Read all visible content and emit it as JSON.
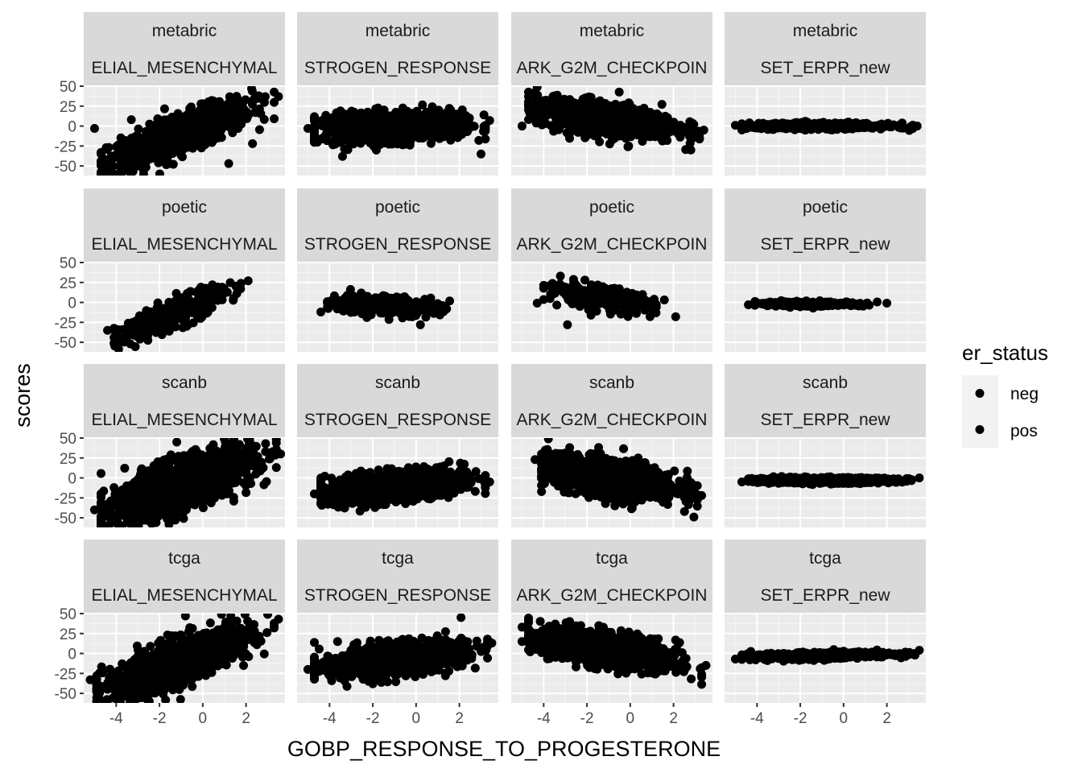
{
  "chart_data": {
    "type": "scatter",
    "xlabel": "GOBP_RESPONSE_TO_PROGESTERONE",
    "ylabel": "scores",
    "xlim": [
      -5.5,
      3.8
    ],
    "ylim": [
      -62,
      50
    ],
    "x_ticks": [
      -4,
      -2,
      0,
      2
    ],
    "x_tick_labels": [
      "-4",
      "-2",
      "0",
      "2"
    ],
    "y_ticks": [
      50,
      25,
      0,
      -25,
      -50
    ],
    "y_tick_labels": [
      "50",
      "25",
      "0",
      "-25",
      "-50"
    ],
    "rows": [
      "metabric",
      "poetic",
      "scanb",
      "tcga"
    ],
    "columns": [
      "ELIAL_MESENCHYMAL",
      "STROGEN_RESPONSE",
      "ARK_G2M_CHECKPOIN",
      "SET_ERPR_new"
    ],
    "legend": {
      "title": "er_status",
      "entries": [
        "neg",
        "pos"
      ],
      "position": "right"
    },
    "grid": true,
    "panels": [
      {
        "row": "metabric",
        "column": "ELIAL_MESENCHYMAL",
        "x_range": [
          -5.0,
          3.5
        ],
        "slope": 10,
        "intercept": 0,
        "y_spread": 12,
        "n_points": 900,
        "outliers": [
          [
            -5.0,
            -3
          ],
          [
            -3.3,
            8
          ],
          [
            1.2,
            -47
          ],
          [
            2.3,
            -22
          ],
          [
            3.5,
            37
          ]
        ]
      },
      {
        "row": "metabric",
        "column": "STROGEN_RESPONSE",
        "x_range": [
          -5.0,
          3.4
        ],
        "slope": 1,
        "intercept": 0,
        "y_spread": 9,
        "n_points": 900,
        "outliers": [
          [
            -5.0,
            -3
          ],
          [
            -3.4,
            -38
          ],
          [
            3.4,
            7
          ],
          [
            3.0,
            -35
          ],
          [
            2.9,
            -18
          ]
        ]
      },
      {
        "row": "metabric",
        "column": "ARK_G2M_CHECKPOIN",
        "x_range": [
          -5.0,
          3.4
        ],
        "slope": -3.5,
        "intercept": 5,
        "y_spread": 10,
        "n_points": 900,
        "outliers": [
          [
            -5.0,
            0
          ],
          [
            -4.1,
            30
          ],
          [
            3.4,
            -5
          ],
          [
            2.8,
            -30
          ]
        ]
      },
      {
        "row": "metabric",
        "column": "SET_ERPR_new",
        "x_range": [
          -5.0,
          3.4
        ],
        "slope": 0,
        "intercept": 0,
        "y_spread": 1.8,
        "n_points": 700,
        "outliers": [
          [
            -5.0,
            1
          ],
          [
            3.4,
            0
          ]
        ]
      },
      {
        "row": "poetic",
        "column": "ELIAL_MESENCHYMAL",
        "x_range": [
          -4.4,
          2.1
        ],
        "slope": 11,
        "intercept": 0,
        "y_spread": 9,
        "n_points": 350,
        "outliers": [
          [
            -4.4,
            -35
          ],
          [
            -2.9,
            -46
          ],
          [
            2.1,
            27
          ]
        ]
      },
      {
        "row": "poetic",
        "column": "STROGEN_RESPONSE",
        "x_range": [
          -4.4,
          2.0
        ],
        "slope": -1,
        "intercept": -5,
        "y_spread": 6,
        "n_points": 300,
        "outliers": [
          [
            -4.4,
            -12
          ],
          [
            -3.2,
            -8
          ],
          [
            0.2,
            -28
          ]
        ]
      },
      {
        "row": "poetic",
        "column": "ARK_G2M_CHECKPOIN",
        "x_range": [
          -4.3,
          2.1
        ],
        "slope": -4,
        "intercept": 0,
        "y_spread": 7,
        "n_points": 300,
        "outliers": [
          [
            -4.3,
            -1
          ],
          [
            -2.9,
            -28
          ],
          [
            2.1,
            -18
          ],
          [
            -1.8,
            22
          ]
        ]
      },
      {
        "row": "poetic",
        "column": "SET_ERPR_new",
        "x_range": [
          -4.4,
          2.0
        ],
        "slope": 0,
        "intercept": -2,
        "y_spread": 1.5,
        "n_points": 250,
        "outliers": [
          [
            -4.4,
            -3
          ],
          [
            2.0,
            -1
          ]
        ]
      },
      {
        "row": "scanb",
        "column": "ELIAL_MESENCHYMAL",
        "x_range": [
          -5.0,
          3.6
        ],
        "slope": 9,
        "intercept": 0,
        "y_spread": 15,
        "n_points": 1400,
        "outliers": [
          [
            -5.0,
            -40
          ],
          [
            3.6,
            30
          ],
          [
            -1.2,
            45
          ]
        ]
      },
      {
        "row": "scanb",
        "column": "STROGEN_RESPONSE",
        "x_range": [
          -4.7,
          3.4
        ],
        "slope": 2.5,
        "intercept": -8,
        "y_spread": 9,
        "n_points": 1300,
        "outliers": [
          [
            -4.7,
            -20
          ],
          [
            3.4,
            -5
          ],
          [
            -3.8,
            -30
          ]
        ]
      },
      {
        "row": "scanb",
        "column": "ARK_G2M_CHECKPOIN",
        "x_range": [
          -4.4,
          3.3
        ],
        "slope": -4,
        "intercept": -4,
        "y_spread": 11,
        "n_points": 1300,
        "outliers": [
          [
            -4.4,
            23
          ],
          [
            3.3,
            -22
          ],
          [
            -2.8,
            38
          ]
        ]
      },
      {
        "row": "scanb",
        "column": "SET_ERPR_new",
        "x_range": [
          -4.7,
          3.5
        ],
        "slope": 0,
        "intercept": -3,
        "y_spread": 1.6,
        "n_points": 900,
        "outliers": [
          [
            -4.7,
            -5
          ],
          [
            3.5,
            0
          ]
        ]
      },
      {
        "row": "tcga",
        "column": "ELIAL_MESENCHYMAL",
        "x_range": [
          -5.2,
          3.5
        ],
        "slope": 10,
        "intercept": 0,
        "y_spread": 14,
        "n_points": 1000,
        "outliers": [
          [
            -5.2,
            -33
          ],
          [
            -4.4,
            -45
          ],
          [
            -3.8,
            -62
          ],
          [
            -0.8,
            47
          ],
          [
            3.5,
            43
          ]
        ]
      },
      {
        "row": "tcga",
        "column": "STROGEN_RESPONSE",
        "x_range": [
          -5.0,
          3.5
        ],
        "slope": 3,
        "intercept": -4,
        "y_spread": 10,
        "n_points": 900,
        "outliers": [
          [
            -5.0,
            -20
          ],
          [
            -4.4,
            -15
          ],
          [
            3.5,
            13
          ],
          [
            -2.0,
            -38
          ]
        ]
      },
      {
        "row": "tcga",
        "column": "ARK_G2M_CHECKPOIN",
        "x_range": [
          -5.0,
          3.5
        ],
        "slope": -4.5,
        "intercept": 0,
        "y_spread": 11,
        "n_points": 900,
        "outliers": [
          [
            -5.0,
            33
          ],
          [
            -5.0,
            15
          ],
          [
            3.5,
            -15
          ],
          [
            -2.8,
            40
          ]
        ]
      },
      {
        "row": "tcga",
        "column": "SET_ERPR_new",
        "x_range": [
          -5.0,
          3.5
        ],
        "slope": 0.6,
        "intercept": -2,
        "y_spread": 2.0,
        "n_points": 700,
        "outliers": [
          [
            -5.0,
            -7
          ],
          [
            3.5,
            4
          ]
        ]
      }
    ]
  },
  "colors": {
    "panel_background": "#ebebeb",
    "grid_major": "#ffffff",
    "grid_minor": "#f5f5f5",
    "strip_background": "#d9d9d9",
    "point": "#000000",
    "tick": "#333333",
    "legend_key_background": "#f2f2f2"
  }
}
